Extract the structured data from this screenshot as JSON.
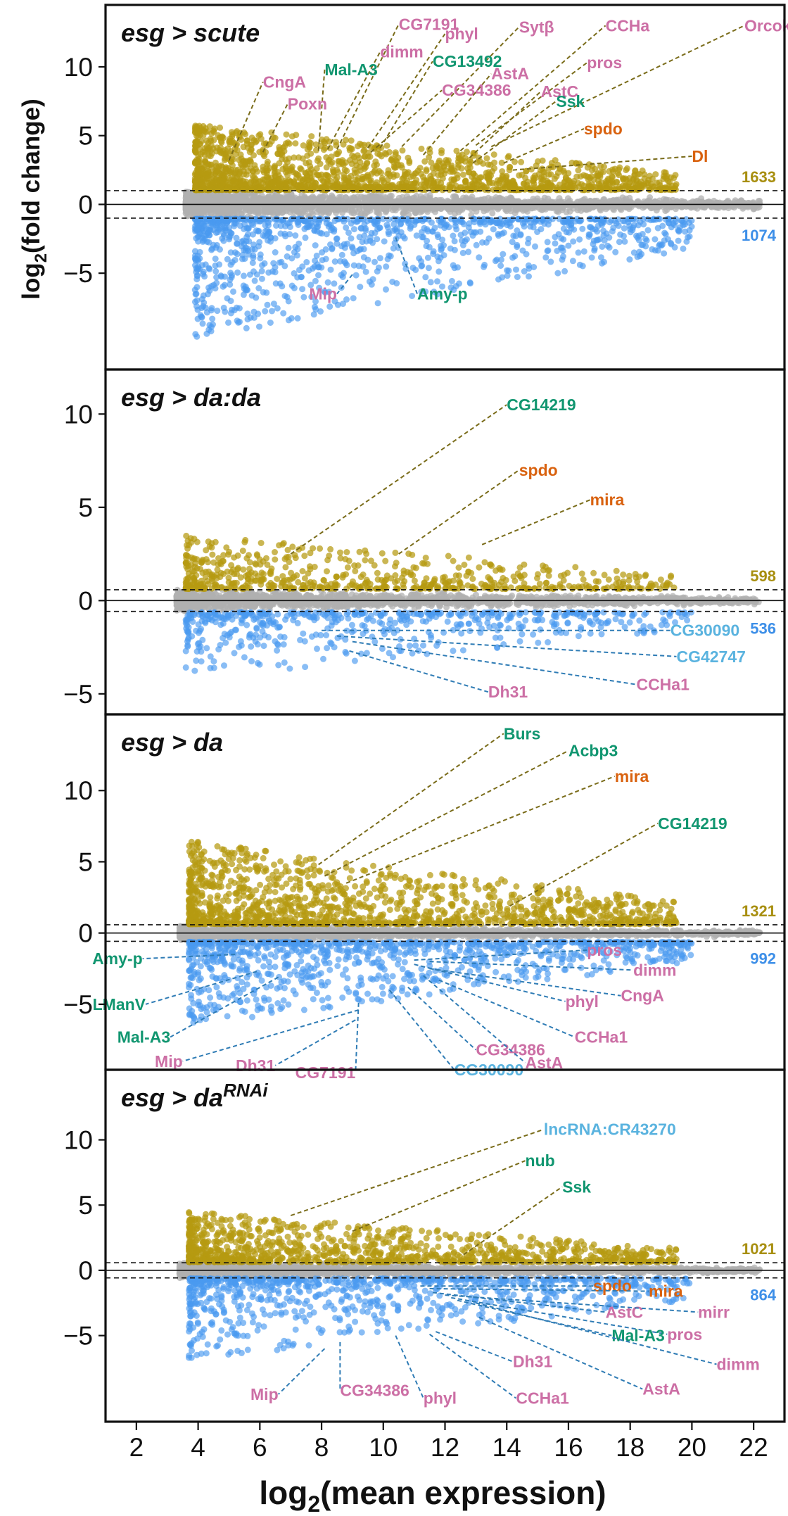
{
  "figure": {
    "ylabel_main": "log",
    "ylabel_sub": "2",
    "ylabel_rest": "(fold change)",
    "xlabel_main": "log",
    "xlabel_sub": "2",
    "xlabel_rest": "(mean expression)"
  },
  "colors": {
    "up": "#b59a10",
    "down": "#4a9af0",
    "ns": "#b0b0b0",
    "up_line": "#7a6c1a",
    "down_line": "#2f7cb5",
    "pink": "#cc6fa5",
    "green": "#119670",
    "orange": "#d9620f",
    "skyblue": "#5ab3df",
    "up_count": "#a88f10",
    "down_count": "#3d8fe8"
  },
  "chart_data": [
    {
      "type": "scatter",
      "title_main": "esg > scute",
      "title_sup": "",
      "xlabel": "log2(mean expression)",
      "ylabel": "log2(fold change)",
      "xlim": [
        1,
        23
      ],
      "ylim": [
        -12,
        14.5
      ],
      "yticks": [
        -5,
        0,
        5,
        10
      ],
      "threshold": 1,
      "counts": {
        "up": "1633",
        "down": "1074"
      },
      "cloud": {
        "up_n": 1633,
        "down_n": 1074,
        "ns_n": 2200,
        "up_max": 5.8,
        "down_min": -9.8,
        "x_min": 3.6,
        "x_max": 22.2
      },
      "genes": [
        {
          "name": "CG7191",
          "color": "pink",
          "x": 8.5,
          "y": 4.0,
          "lx": 10.5,
          "ly": 13.1,
          "dir": "up"
        },
        {
          "name": "phyl",
          "color": "pink",
          "x": 9.5,
          "y": 4.1,
          "lx": 12.0,
          "ly": 12.4,
          "dir": "up"
        },
        {
          "name": "Sytβ",
          "color": "pink",
          "x": 10.6,
          "y": 4.2,
          "lx": 14.4,
          "ly": 12.9,
          "dir": "up"
        },
        {
          "name": "CCHa",
          "color": "pink",
          "x": 12.5,
          "y": 3.9,
          "lx": 17.2,
          "ly": 13.0,
          "dir": "up"
        },
        {
          "name": "Orcokinin",
          "color": "pink",
          "x": 13.5,
          "y": 4.2,
          "lx": 21.7,
          "ly": 13.0,
          "dir": "up"
        },
        {
          "name": "dimm",
          "color": "pink",
          "x": 8.2,
          "y": 4.0,
          "lx": 9.9,
          "ly": 11.1,
          "dir": "up"
        },
        {
          "name": "Mal-A3",
          "color": "green",
          "x": 7.9,
          "y": 3.9,
          "lx": 8.1,
          "ly": 9.8,
          "dir": "up"
        },
        {
          "name": "CG13492",
          "color": "green",
          "x": 9.9,
          "y": 4.1,
          "lx": 11.6,
          "ly": 10.4,
          "dir": "up"
        },
        {
          "name": "CngA",
          "color": "pink",
          "x": 5.0,
          "y": 3.2,
          "lx": 6.1,
          "ly": 8.9,
          "dir": "up"
        },
        {
          "name": "Poxn",
          "color": "pink",
          "x": 6.1,
          "y": 3.8,
          "lx": 6.9,
          "ly": 7.3,
          "dir": "up"
        },
        {
          "name": "CG34386",
          "color": "pink",
          "x": 9.6,
          "y": 3.8,
          "lx": 11.9,
          "ly": 8.3,
          "dir": "up"
        },
        {
          "name": "AstA",
          "color": "pink",
          "x": 11.3,
          "y": 3.6,
          "lx": 13.5,
          "ly": 9.5,
          "dir": "up"
        },
        {
          "name": "pros",
          "color": "pink",
          "x": 13.0,
          "y": 4.3,
          "lx": 16.6,
          "ly": 10.3,
          "dir": "up"
        },
        {
          "name": "AstC",
          "color": "pink",
          "x": 12.8,
          "y": 3.4,
          "lx": 15.1,
          "ly": 8.2,
          "dir": "up"
        },
        {
          "name": "Ssk",
          "color": "green",
          "x": 12.9,
          "y": 3.0,
          "lx": 15.6,
          "ly": 7.5,
          "dir": "up"
        },
        {
          "name": "spdo",
          "color": "orange",
          "x": 13.9,
          "y": 3.0,
          "lx": 16.5,
          "ly": 5.5,
          "dir": "up"
        },
        {
          "name": "Dl",
          "color": "orange",
          "x": 14.2,
          "y": 2.5,
          "lx": 20.0,
          "ly": 3.5,
          "dir": "up"
        },
        {
          "name": "Mip",
          "color": "pink",
          "x": 9.0,
          "y": -5.1,
          "lx": 8.5,
          "ly": -6.5,
          "dir": "down"
        },
        {
          "name": "Amy-p",
          "color": "green",
          "x": 10.4,
          "y": -2.4,
          "lx": 11.1,
          "ly": -6.5,
          "dir": "down"
        }
      ]
    },
    {
      "type": "scatter",
      "title_main": "esg > da:da",
      "title_sup": "",
      "xlabel": "log2(mean expression)",
      "ylabel": "log2(fold change)",
      "xlim": [
        1,
        23
      ],
      "ylim": [
        -6.1,
        12.2
      ],
      "yticks": [
        -5,
        0,
        5,
        10
      ],
      "threshold": 0.58,
      "counts": {
        "up": "598",
        "down": "536"
      },
      "cloud": {
        "up_n": 598,
        "down_n": 536,
        "ns_n": 1800,
        "up_max": 3.5,
        "down_min": -4.2,
        "x_min": 3.3,
        "x_max": 22.2
      },
      "genes": [
        {
          "name": "CG14219",
          "color": "green",
          "x": 7.0,
          "y": 2.5,
          "lx": 14.0,
          "ly": 10.5,
          "dir": "up"
        },
        {
          "name": "spdo",
          "color": "orange",
          "x": 10.5,
          "y": 2.5,
          "lx": 14.4,
          "ly": 7.0,
          "dir": "up"
        },
        {
          "name": "mira",
          "color": "orange",
          "x": 13.2,
          "y": 3.0,
          "lx": 16.7,
          "ly": 5.4,
          "dir": "up"
        },
        {
          "name": "CG30090",
          "color": "skyblue",
          "x": 8.0,
          "y": -1.6,
          "lx": 19.3,
          "ly": -1.6,
          "dir": "down"
        },
        {
          "name": "CG42747",
          "color": "skyblue",
          "x": 8.5,
          "y": -1.9,
          "lx": 19.5,
          "ly": -3.0,
          "dir": "down"
        },
        {
          "name": "Dh31",
          "color": "pink",
          "x": 8.9,
          "y": -2.7,
          "lx": 13.4,
          "ly": -4.9,
          "dir": "down"
        },
        {
          "name": "CCHa1",
          "color": "pink",
          "x": 9.0,
          "y": -2.2,
          "lx": 18.2,
          "ly": -4.5,
          "dir": "down"
        }
      ]
    },
    {
      "type": "scatter",
      "title_main": "esg > da",
      "title_sup": "",
      "xlabel": "log2(mean expression)",
      "ylabel": "log2(fold change)",
      "xlim": [
        1,
        23
      ],
      "ylim": [
        -9.6,
        15.1
      ],
      "yticks": [
        -5,
        0,
        5,
        10
      ],
      "threshold": 0.58,
      "counts": {
        "up": "1321",
        "down": "992"
      },
      "cloud": {
        "up_n": 1321,
        "down_n": 992,
        "ns_n": 2000,
        "up_max": 6.5,
        "down_min": -6.5,
        "x_min": 3.4,
        "x_max": 22.2
      },
      "genes": [
        {
          "name": "Burs",
          "color": "green",
          "x": 7.9,
          "y": 4.8,
          "lx": 13.9,
          "ly": 14.0,
          "dir": "up"
        },
        {
          "name": "Acbp3",
          "color": "green",
          "x": 8.1,
          "y": 4.0,
          "lx": 16.0,
          "ly": 12.8,
          "dir": "up"
        },
        {
          "name": "mira",
          "color": "orange",
          "x": 8.8,
          "y": 3.5,
          "lx": 17.5,
          "ly": 11.0,
          "dir": "up"
        },
        {
          "name": "CG14219",
          "color": "green",
          "x": 14.1,
          "y": 1.9,
          "lx": 18.9,
          "ly": 7.7,
          "dir": "up"
        },
        {
          "name": "Amy-p",
          "color": "green",
          "x": 5.2,
          "y": -1.5,
          "lx": 2.2,
          "ly": -1.8,
          "dir": "down"
        },
        {
          "name": "LManV",
          "color": "green",
          "x": 5.9,
          "y": -2.7,
          "lx": 2.3,
          "ly": -5.0,
          "dir": "down"
        },
        {
          "name": "Mal-A3",
          "color": "green",
          "x": 6.6,
          "y": -3.1,
          "lx": 3.1,
          "ly": -7.3,
          "dir": "down"
        },
        {
          "name": "pros",
          "color": "pink",
          "x": 11.0,
          "y": -1.9,
          "lx": 16.6,
          "ly": -1.2,
          "dir": "down"
        },
        {
          "name": "dimm",
          "color": "pink",
          "x": 11.5,
          "y": -2.0,
          "lx": 18.1,
          "ly": -2.6,
          "dir": "down"
        },
        {
          "name": "phyl",
          "color": "pink",
          "x": 11.0,
          "y": -2.2,
          "lx": 15.9,
          "ly": -4.8,
          "dir": "down"
        },
        {
          "name": "CngA",
          "color": "pink",
          "x": 11.5,
          "y": -2.5,
          "lx": 17.7,
          "ly": -4.4,
          "dir": "down"
        },
        {
          "name": "Mip",
          "color": "pink",
          "x": 9.2,
          "y": -5.4,
          "lx": 3.5,
          "ly": -9.0,
          "dir": "down"
        },
        {
          "name": "Dh31",
          "color": "pink",
          "x": 9.1,
          "y": -6.1,
          "lx": 6.5,
          "ly": -9.3,
          "dir": "down"
        },
        {
          "name": "CG7191",
          "color": "pink",
          "x": 9.2,
          "y": -4.9,
          "lx": 9.1,
          "ly": -9.8,
          "dir": "down"
        },
        {
          "name": "CG30090",
          "color": "skyblue",
          "x": 10.2,
          "y": -4.0,
          "lx": 12.3,
          "ly": -9.6,
          "dir": "down"
        },
        {
          "name": "CG34386",
          "color": "pink",
          "x": 10.8,
          "y": -3.8,
          "lx": 13.0,
          "ly": -8.2,
          "dir": "down"
        },
        {
          "name": "AstA",
          "color": "pink",
          "x": 11.3,
          "y": -3.0,
          "lx": 14.6,
          "ly": -9.1,
          "dir": "down"
        },
        {
          "name": "CCHa1",
          "color": "pink",
          "x": 11.8,
          "y": -3.3,
          "lx": 16.2,
          "ly": -7.3,
          "dir": "down"
        }
      ]
    },
    {
      "type": "scatter",
      "title_main": "esg > da",
      "title_sup": "RNAi",
      "xlabel": "log2(mean expression)",
      "ylabel": "log2(fold change)",
      "xlim": [
        1,
        23
      ],
      "ylim": [
        -11.6,
        15.1
      ],
      "yticks": [
        -5,
        0,
        5,
        10
      ],
      "threshold": 0.58,
      "counts": {
        "up": "1021",
        "down": "864"
      },
      "cloud": {
        "up_n": 1021,
        "down_n": 864,
        "ns_n": 2000,
        "up_max": 4.5,
        "down_min": -7.0,
        "x_min": 3.4,
        "x_max": 22.2
      },
      "genes": [
        {
          "name": "lncRNA:CR43270",
          "color": "skyblue",
          "x": 7.0,
          "y": 4.2,
          "lx": 15.2,
          "ly": 10.8,
          "dir": "up"
        },
        {
          "name": "nub",
          "color": "green",
          "x": 9.0,
          "y": 3.0,
          "lx": 14.6,
          "ly": 8.4,
          "dir": "up"
        },
        {
          "name": "Ssk",
          "color": "green",
          "x": 12.6,
          "y": 1.2,
          "lx": 15.8,
          "ly": 6.4,
          "dir": "up"
        },
        {
          "name": "spdo",
          "color": "orange",
          "x": 11.2,
          "y": -1.2,
          "lx": 16.8,
          "ly": -1.2,
          "dir": "down"
        },
        {
          "name": "mira",
          "color": "orange",
          "x": 11.5,
          "y": -1.4,
          "lx": 18.6,
          "ly": -1.6,
          "dir": "down"
        },
        {
          "name": "AstC",
          "color": "pink",
          "x": 11.6,
          "y": -1.7,
          "lx": 17.2,
          "ly": -3.2,
          "dir": "down"
        },
        {
          "name": "mirr",
          "color": "pink",
          "x": 12.0,
          "y": -1.9,
          "lx": 20.2,
          "ly": -3.2,
          "dir": "down"
        },
        {
          "name": "pros",
          "color": "pink",
          "x": 12.2,
          "y": -2.1,
          "lx": 19.2,
          "ly": -4.9,
          "dir": "down"
        },
        {
          "name": "Mal-A3",
          "color": "green",
          "x": 12.4,
          "y": -2.3,
          "lx": 17.4,
          "ly": -5.0,
          "dir": "down"
        },
        {
          "name": "dimm",
          "color": "pink",
          "x": 13.0,
          "y": -2.5,
          "lx": 20.8,
          "ly": -7.2,
          "dir": "down"
        },
        {
          "name": "Dh31",
          "color": "pink",
          "x": 11.7,
          "y": -4.7,
          "lx": 14.2,
          "ly": -7.0,
          "dir": "down"
        },
        {
          "name": "AstA",
          "color": "pink",
          "x": 13.1,
          "y": -3.6,
          "lx": 18.4,
          "ly": -9.1,
          "dir": "down"
        },
        {
          "name": "Mip",
          "color": "pink",
          "x": 8.1,
          "y": -6.0,
          "lx": 6.6,
          "ly": -9.5,
          "dir": "down"
        },
        {
          "name": "CG34386",
          "color": "pink",
          "x": 8.6,
          "y": -5.5,
          "lx": 8.6,
          "ly": -9.2,
          "dir": "down"
        },
        {
          "name": "phyl",
          "color": "pink",
          "x": 10.4,
          "y": -5.0,
          "lx": 11.3,
          "ly": -9.8,
          "dir": "down"
        },
        {
          "name": "CCHa1",
          "color": "pink",
          "x": 11.5,
          "y": -4.9,
          "lx": 14.3,
          "ly": -9.8,
          "dir": "down"
        }
      ]
    }
  ],
  "xaxis": {
    "ticks": [
      2,
      4,
      6,
      8,
      10,
      12,
      14,
      16,
      18,
      20,
      22
    ],
    "tick_labels": [
      "2",
      "4",
      "6",
      "8",
      "10",
      "12",
      "14",
      "16",
      "18",
      "20",
      "22"
    ]
  }
}
